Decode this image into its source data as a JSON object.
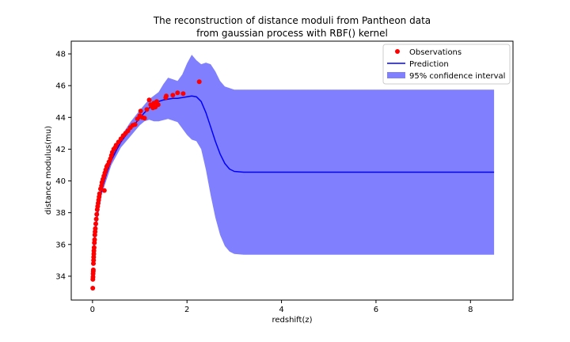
{
  "chart_data": {
    "type": "line",
    "title_lines": [
      "The reconstruction of distance moduli from Pantheon data",
      "from gaussian process with RBF() kernel"
    ],
    "xlabel": "redshift(z)",
    "ylabel": "distance modulus(mu)",
    "xlim": [
      -0.45,
      8.9
    ],
    "ylim": [
      32.5,
      48.8
    ],
    "xticks": [
      0,
      2,
      4,
      6,
      8
    ],
    "yticks": [
      34,
      36,
      38,
      40,
      42,
      44,
      46,
      48
    ],
    "grid": false,
    "legend_position": "top-right",
    "colors": {
      "observations": "#ff0000",
      "prediction": "#0000ff",
      "confidence": "#8080ff"
    },
    "series": [
      {
        "name": "Observations",
        "kind": "scatter",
        "points": [
          [
            0.005,
            33.25
          ],
          [
            0.008,
            33.8
          ],
          [
            0.01,
            33.95
          ],
          [
            0.012,
            34.15
          ],
          [
            0.015,
            34.3
          ],
          [
            0.018,
            34.4
          ],
          [
            0.02,
            34.8
          ],
          [
            0.022,
            35.0
          ],
          [
            0.025,
            35.2
          ],
          [
            0.028,
            35.4
          ],
          [
            0.03,
            35.6
          ],
          [
            0.035,
            35.8
          ],
          [
            0.04,
            36.1
          ],
          [
            0.045,
            36.3
          ],
          [
            0.05,
            36.6
          ],
          [
            0.055,
            36.8
          ],
          [
            0.06,
            37.0
          ],
          [
            0.07,
            37.3
          ],
          [
            0.08,
            37.6
          ],
          [
            0.09,
            37.9
          ],
          [
            0.1,
            38.2
          ],
          [
            0.11,
            38.4
          ],
          [
            0.12,
            38.6
          ],
          [
            0.13,
            38.8
          ],
          [
            0.14,
            39.0
          ],
          [
            0.15,
            39.2
          ],
          [
            0.17,
            39.5
          ],
          [
            0.19,
            39.7
          ],
          [
            0.2,
            39.9
          ],
          [
            0.22,
            40.1
          ],
          [
            0.24,
            40.3
          ],
          [
            0.25,
            39.4
          ],
          [
            0.26,
            40.5
          ],
          [
            0.28,
            40.7
          ],
          [
            0.3,
            40.9
          ],
          [
            0.32,
            41.0
          ],
          [
            0.35,
            41.2
          ],
          [
            0.38,
            41.4
          ],
          [
            0.4,
            41.6
          ],
          [
            0.42,
            41.8
          ],
          [
            0.45,
            42.0
          ],
          [
            0.48,
            42.1
          ],
          [
            0.5,
            42.25
          ],
          [
            0.55,
            42.45
          ],
          [
            0.6,
            42.65
          ],
          [
            0.65,
            42.85
          ],
          [
            0.7,
            43.0
          ],
          [
            0.75,
            43.15
          ],
          [
            0.8,
            43.35
          ],
          [
            0.85,
            43.5
          ],
          [
            0.9,
            43.55
          ],
          [
            0.95,
            43.9
          ],
          [
            1.0,
            44.1
          ],
          [
            1.02,
            44.4
          ],
          [
            1.05,
            44.0
          ],
          [
            1.1,
            43.95
          ],
          [
            1.15,
            44.5
          ],
          [
            1.2,
            45.1
          ],
          [
            1.23,
            44.8
          ],
          [
            1.25,
            44.7
          ],
          [
            1.28,
            44.6
          ],
          [
            1.3,
            44.9
          ],
          [
            1.33,
            44.65
          ],
          [
            1.36,
            45.0
          ],
          [
            1.39,
            44.8
          ],
          [
            1.55,
            45.25
          ],
          [
            1.56,
            45.35
          ],
          [
            1.7,
            45.4
          ],
          [
            1.8,
            45.55
          ],
          [
            1.92,
            45.5
          ],
          [
            2.26,
            46.25
          ]
        ]
      },
      {
        "name": "Prediction",
        "kind": "line",
        "points": [
          [
            0.0,
            34.9
          ],
          [
            0.03,
            35.9
          ],
          [
            0.06,
            36.8
          ],
          [
            0.1,
            37.8
          ],
          [
            0.15,
            38.8
          ],
          [
            0.2,
            39.5
          ],
          [
            0.3,
            40.5
          ],
          [
            0.4,
            41.3
          ],
          [
            0.5,
            41.9
          ],
          [
            0.6,
            42.45
          ],
          [
            0.7,
            42.85
          ],
          [
            0.8,
            43.25
          ],
          [
            0.9,
            43.6
          ],
          [
            1.0,
            43.95
          ],
          [
            1.1,
            44.3
          ],
          [
            1.2,
            44.6
          ],
          [
            1.3,
            44.85
          ],
          [
            1.4,
            45.0
          ],
          [
            1.5,
            45.1
          ],
          [
            1.6,
            45.15
          ],
          [
            1.7,
            45.2
          ],
          [
            1.8,
            45.2
          ],
          [
            1.9,
            45.25
          ],
          [
            2.0,
            45.3
          ],
          [
            2.1,
            45.35
          ],
          [
            2.2,
            45.3
          ],
          [
            2.3,
            45.0
          ],
          [
            2.4,
            44.3
          ],
          [
            2.5,
            43.4
          ],
          [
            2.6,
            42.5
          ],
          [
            2.7,
            41.7
          ],
          [
            2.8,
            41.1
          ],
          [
            2.9,
            40.75
          ],
          [
            3.0,
            40.6
          ],
          [
            3.2,
            40.55
          ],
          [
            3.5,
            40.55
          ],
          [
            4.0,
            40.55
          ],
          [
            5.0,
            40.55
          ],
          [
            6.0,
            40.55
          ],
          [
            7.0,
            40.55
          ],
          [
            8.0,
            40.55
          ],
          [
            8.5,
            40.55
          ]
        ]
      },
      {
        "name": "95% confidence interval",
        "kind": "band",
        "upper": [
          [
            0.0,
            35.5
          ],
          [
            0.1,
            38.1
          ],
          [
            0.2,
            39.8
          ],
          [
            0.4,
            41.6
          ],
          [
            0.6,
            42.8
          ],
          [
            0.8,
            43.7
          ],
          [
            1.0,
            44.45
          ],
          [
            1.2,
            45.15
          ],
          [
            1.4,
            45.6
          ],
          [
            1.5,
            46.1
          ],
          [
            1.6,
            46.5
          ],
          [
            1.7,
            46.4
          ],
          [
            1.8,
            46.3
          ],
          [
            1.9,
            46.7
          ],
          [
            2.0,
            47.4
          ],
          [
            2.1,
            47.95
          ],
          [
            2.2,
            47.6
          ],
          [
            2.3,
            47.35
          ],
          [
            2.4,
            47.45
          ],
          [
            2.5,
            47.35
          ],
          [
            2.6,
            46.9
          ],
          [
            2.7,
            46.3
          ],
          [
            2.8,
            45.95
          ],
          [
            3.0,
            45.75
          ],
          [
            4.0,
            45.75
          ],
          [
            6.0,
            45.75
          ],
          [
            8.5,
            45.75
          ]
        ],
        "lower": [
          [
            0.0,
            34.5
          ],
          [
            0.1,
            37.5
          ],
          [
            0.2,
            39.2
          ],
          [
            0.4,
            41.0
          ],
          [
            0.6,
            42.1
          ],
          [
            0.8,
            42.8
          ],
          [
            1.0,
            43.5
          ],
          [
            1.1,
            43.75
          ],
          [
            1.2,
            43.85
          ],
          [
            1.3,
            43.75
          ],
          [
            1.4,
            43.75
          ],
          [
            1.6,
            43.9
          ],
          [
            1.8,
            43.7
          ],
          [
            1.9,
            43.3
          ],
          [
            2.0,
            42.9
          ],
          [
            2.1,
            42.6
          ],
          [
            2.2,
            42.5
          ],
          [
            2.3,
            42.0
          ],
          [
            2.4,
            40.7
          ],
          [
            2.5,
            39.1
          ],
          [
            2.6,
            37.7
          ],
          [
            2.7,
            36.6
          ],
          [
            2.8,
            35.9
          ],
          [
            2.9,
            35.55
          ],
          [
            3.0,
            35.4
          ],
          [
            3.2,
            35.35
          ],
          [
            4.0,
            35.35
          ],
          [
            6.0,
            35.35
          ],
          [
            8.5,
            35.35
          ]
        ]
      }
    ]
  }
}
